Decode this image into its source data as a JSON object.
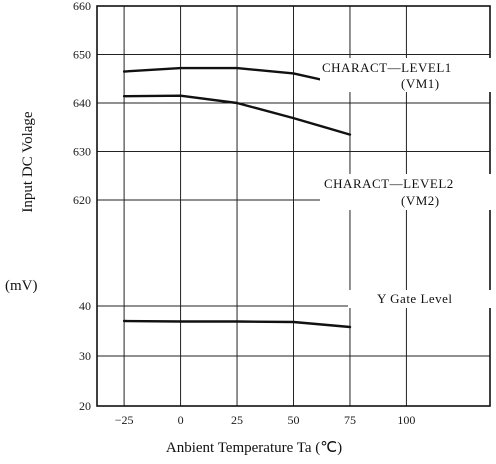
{
  "chart_data": {
    "type": "line",
    "xlabel": "Anbient Temperature Ta (℃)",
    "ylabel": "Input DC Volage",
    "yunit": "(mV)",
    "x_ticks": [
      "-25",
      "0",
      "25",
      "50",
      "75",
      "100"
    ],
    "y_ticks_upper": [
      "620",
      "630",
      "640",
      "650",
      "660"
    ],
    "y_ticks_lower": [
      "20",
      "30",
      "40"
    ],
    "xlim": [
      -37,
      137
    ],
    "ylim_upper": [
      613,
      660
    ],
    "ylim_lower": [
      20,
      46
    ],
    "axis_break": "between 40 and 620 mV",
    "grid": true,
    "series": [
      {
        "name": "CHARACT—LEVEL1",
        "sublabel": "(VM1)",
        "panel": "upper",
        "x": [
          -25,
          0,
          25,
          50,
          75
        ],
        "y": [
          646.5,
          647.2,
          647.2,
          646.1,
          643.5
        ]
      },
      {
        "name": "CHARACT—LEVEL2",
        "sublabel": "(VM2)",
        "panel": "upper",
        "x": [
          -25,
          0,
          25,
          50,
          75
        ],
        "y": [
          641.4,
          641.5,
          640.0,
          636.9,
          633.5
        ]
      },
      {
        "name": "Y Gate Level",
        "sublabel": "",
        "panel": "lower",
        "x": [
          -25,
          0,
          25,
          50,
          75
        ],
        "y": [
          37.0,
          36.9,
          36.9,
          36.8,
          35.8
        ]
      }
    ]
  }
}
